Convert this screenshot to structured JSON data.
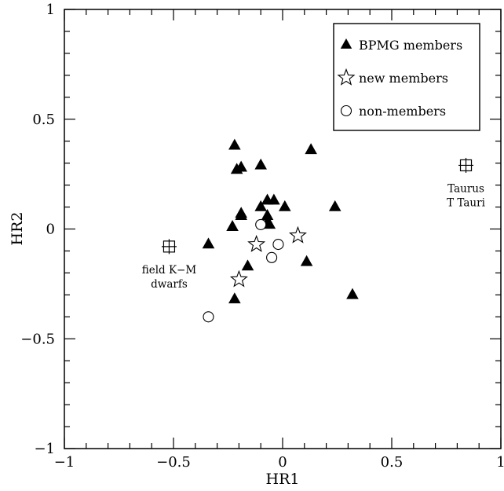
{
  "chart_data": {
    "type": "scatter",
    "xlabel": "HR1",
    "ylabel": "HR2",
    "xlim": [
      -1,
      1
    ],
    "ylim": [
      -1,
      1
    ],
    "grid": false,
    "legend_position": "top-right",
    "x_ticks": [
      {
        "value": -1,
        "label": "−1"
      },
      {
        "value": -0.5,
        "label": "−0.5"
      },
      {
        "value": 0,
        "label": "0"
      },
      {
        "value": 0.5,
        "label": "0.5"
      },
      {
        "value": 1,
        "label": "1"
      }
    ],
    "y_ticks": [
      {
        "value": -1,
        "label": "−1"
      },
      {
        "value": -0.5,
        "label": "−0.5"
      },
      {
        "value": 0,
        "label": "0"
      },
      {
        "value": 0.5,
        "label": "0.5"
      },
      {
        "value": 1,
        "label": "1"
      }
    ],
    "series": [
      {
        "name": "BPMG members",
        "marker": "filled-triangle",
        "points": [
          [
            -0.22,
            0.38
          ],
          [
            -0.21,
            0.27
          ],
          [
            -0.19,
            0.28
          ],
          [
            -0.1,
            0.29
          ],
          [
            0.13,
            0.36
          ],
          [
            -0.19,
            0.07
          ],
          [
            -0.19,
            0.06
          ],
          [
            -0.1,
            0.1
          ],
          [
            -0.07,
            0.13
          ],
          [
            -0.04,
            0.13
          ],
          [
            0.01,
            0.1
          ],
          [
            -0.07,
            0.06
          ],
          [
            -0.07,
            0.03
          ],
          [
            -0.06,
            0.02
          ],
          [
            0.24,
            0.1
          ],
          [
            -0.23,
            0.01
          ],
          [
            -0.34,
            -0.07
          ],
          [
            -0.16,
            -0.17
          ],
          [
            0.11,
            -0.15
          ],
          [
            -0.22,
            -0.32
          ],
          [
            0.32,
            -0.3
          ]
        ]
      },
      {
        "name": "new members",
        "marker": "open-star",
        "points": [
          [
            -0.12,
            -0.07
          ],
          [
            0.07,
            -0.03
          ],
          [
            -0.2,
            -0.23
          ]
        ]
      },
      {
        "name": "non-members",
        "marker": "open-circle",
        "points": [
          [
            -0.1,
            0.02
          ],
          [
            -0.02,
            -0.07
          ],
          [
            -0.05,
            -0.13
          ],
          [
            -0.34,
            -0.4
          ]
        ]
      }
    ],
    "reference_points": [
      {
        "x": -0.52,
        "y": -0.08,
        "marker": "boxed-cross",
        "lines": [
          "field K−M",
          "dwarfs"
        ]
      },
      {
        "x": 0.84,
        "y": 0.29,
        "marker": "boxed-cross",
        "lines": [
          "Taurus",
          "T Tauri"
        ]
      }
    ]
  }
}
